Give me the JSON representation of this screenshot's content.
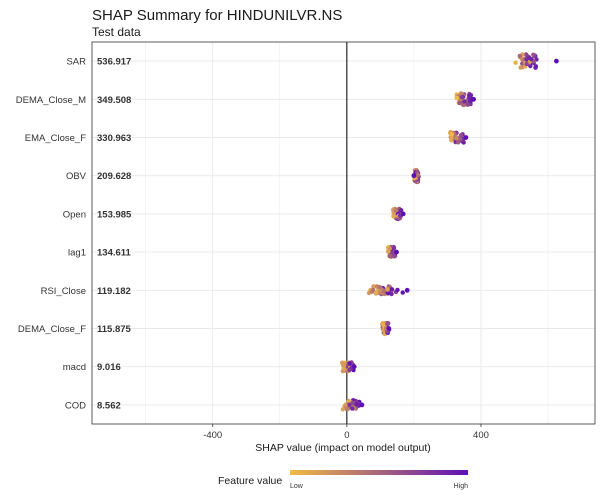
{
  "chart_data": {
    "type": "scatter",
    "title": "SHAP Summary for HINDUNILVR.NS",
    "subtitle": "Test data",
    "xlabel": "SHAP value (impact on model output)",
    "xlim": [
      -760,
      740
    ],
    "x_ticks": [
      -400,
      0,
      400
    ],
    "grid": true,
    "legend": {
      "title": "Feature value",
      "low_label": "Low",
      "high_label": "High",
      "position": "bottom"
    },
    "colors": {
      "low": "#f2bb44",
      "high": "#5d0fb5",
      "zero_line": "#000000",
      "grid": "#e9e9e9"
    },
    "features": [
      {
        "name": "SAR",
        "mean_abs_shap": "536.917",
        "shap_min": 500,
        "shap_max": 575,
        "high_x": 625,
        "spread": 0.8
      },
      {
        "name": "DEMA_Close_M",
        "mean_abs_shap": "349.508",
        "shap_min": 322,
        "shap_max": 378,
        "high_x": 378,
        "spread": 0.7
      },
      {
        "name": "EMA_Close_F",
        "mean_abs_shap": "330.963",
        "shap_min": 305,
        "shap_max": 355,
        "high_x": 355,
        "spread": 0.65
      },
      {
        "name": "OBV",
        "mean_abs_shap": "209.628",
        "shap_min": 197,
        "shap_max": 218,
        "high_x": 200,
        "spread": 0.75
      },
      {
        "name": "Open",
        "mean_abs_shap": "153.985",
        "shap_min": 135,
        "shap_max": 170,
        "high_x": 168,
        "spread": 0.6
      },
      {
        "name": "lag1",
        "mean_abs_shap": "134.611",
        "shap_min": 120,
        "shap_max": 150,
        "high_x": 148,
        "spread": 0.6
      },
      {
        "name": "RSI_Close",
        "mean_abs_shap": "119.182",
        "shap_min": 50,
        "shap_max": 180,
        "high_x": 180,
        "spread": 0.5
      },
      {
        "name": "DEMA_Close_F",
        "mean_abs_shap": "115.875",
        "shap_min": 100,
        "shap_max": 130,
        "high_x": 125,
        "spread": 0.65
      },
      {
        "name": "macd",
        "mean_abs_shap": "9.016",
        "shap_min": -18,
        "shap_max": 25,
        "high_x": 22,
        "spread": 0.55
      },
      {
        "name": "COD",
        "mean_abs_shap": "8.562",
        "shap_min": -18,
        "shap_max": 45,
        "high_x": 45,
        "spread": 0.55
      }
    ]
  }
}
